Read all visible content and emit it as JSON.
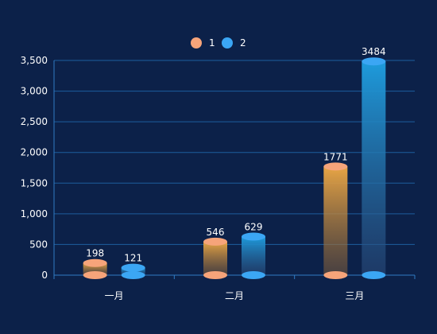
{
  "chart_data": {
    "type": "bar",
    "title": "",
    "xlabel": "",
    "ylabel": "",
    "categories": [
      "一月",
      "二月",
      "三月"
    ],
    "series": [
      {
        "name": "1",
        "values": [
          198,
          546,
          1771
        ],
        "color": "#f6a47a"
      },
      {
        "name": "2",
        "values": [
          121,
          629,
          3484
        ],
        "color": "#3ba6f4"
      }
    ],
    "ylim": [
      0,
      3500
    ],
    "yticks": [
      0,
      500,
      1000,
      1500,
      2000,
      2500,
      3000,
      3500
    ],
    "ytick_labels": [
      "0",
      "500",
      "1,000",
      "1,500",
      "2,000",
      "2,500",
      "3,000",
      "3,500"
    ],
    "grid": true,
    "legend_position": "top-center",
    "background_color": "#0c2149",
    "grid_color": "#1d5e9e",
    "axis_color": "#2f7ac4"
  }
}
